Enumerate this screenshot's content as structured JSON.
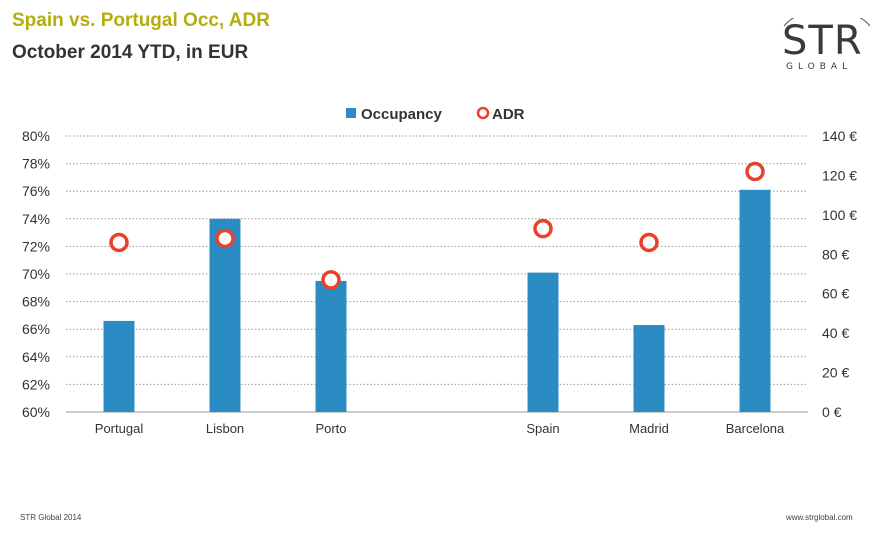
{
  "header": {
    "title": "Spain vs. Portugal Occ, ADR",
    "subtitle": "October 2014 YTD, in EUR"
  },
  "logo": {
    "main": "STR",
    "sub": "GLOBAL"
  },
  "footer": {
    "left": "STR Global 2014",
    "right": "www.strglobal.com"
  },
  "colors": {
    "title": "#b5ad0e",
    "bar": "#2b8cc4",
    "marker": "#e8412c",
    "grid": "#9a9a9a"
  },
  "chart_data": {
    "type": "bar",
    "categories": [
      "Portugal",
      "Lisbon",
      "Porto",
      "",
      "Spain",
      "Madrid",
      "Barcelona"
    ],
    "series": [
      {
        "name": "Occupancy",
        "kind": "bar",
        "axis": "left",
        "values": [
          66.6,
          74.0,
          69.5,
          null,
          70.1,
          66.3,
          76.1
        ]
      },
      {
        "name": "ADR",
        "kind": "marker",
        "axis": "right",
        "values": [
          86,
          88,
          67,
          null,
          93,
          86,
          122
        ]
      }
    ],
    "left_axis": {
      "min": 60,
      "max": 80,
      "step": 2,
      "tick_labels": [
        "60%",
        "62%",
        "64%",
        "66%",
        "68%",
        "70%",
        "72%",
        "74%",
        "76%",
        "78%",
        "80%"
      ]
    },
    "right_axis": {
      "min": 0,
      "max": 140,
      "step": 20,
      "tick_labels": [
        "0 €",
        "20 €",
        "40 €",
        "60 €",
        "80 €",
        "100 €",
        "120 €",
        "140 €"
      ]
    },
    "legend_position": "top-center",
    "grid": true
  }
}
